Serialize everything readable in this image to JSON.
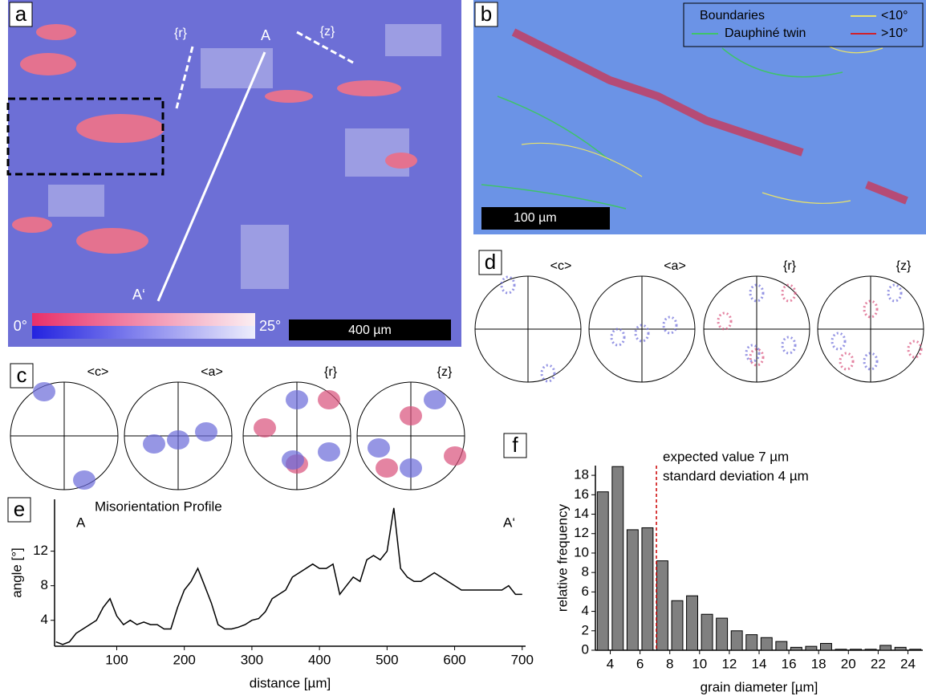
{
  "panels": {
    "a": {
      "label": "a",
      "start": "A",
      "end": "A‘",
      "r": "{r}",
      "z": "{z}",
      "scale_min": "0°",
      "scale_max": "25°",
      "scale_bar": "400 µm"
    },
    "b": {
      "label": "b",
      "legend_title": "Boundaries",
      "twin": "Dauphiné twin",
      "low": "<10°",
      "high": ">10°",
      "scale_bar": "100 µm"
    },
    "c": {
      "label": "c",
      "poles": [
        "<c>",
        "<a>",
        "{r}",
        "{z}"
      ]
    },
    "d": {
      "label": "d",
      "poles": [
        "<c>",
        "<a>",
        "{r}",
        "{z}"
      ]
    }
  },
  "chart_data": [
    {
      "type": "line",
      "panel": "e",
      "title": "Misorientation Profile",
      "annotations": [
        "A",
        "A‘"
      ],
      "x_label": "distance [µm]",
      "y_label": "angle [°]",
      "color": "#000000",
      "x": [
        10,
        20,
        30,
        40,
        50,
        60,
        70,
        80,
        90,
        100,
        110,
        120,
        130,
        140,
        150,
        160,
        170,
        180,
        190,
        200,
        210,
        220,
        230,
        240,
        250,
        260,
        270,
        280,
        290,
        300,
        310,
        320,
        330,
        340,
        350,
        360,
        370,
        380,
        390,
        400,
        410,
        420,
        430,
        440,
        450,
        460,
        470,
        480,
        490,
        500,
        510,
        520,
        530,
        540,
        550,
        560,
        570,
        580,
        590,
        600,
        610,
        620,
        630,
        640,
        650,
        660,
        670,
        680,
        690,
        700
      ],
      "values": [
        1.5,
        1.2,
        1.5,
        2.5,
        3,
        3.5,
        4,
        5.5,
        6.5,
        4.5,
        3.5,
        4,
        3.5,
        3.8,
        3.5,
        3.5,
        3,
        3,
        5.5,
        7.5,
        8.5,
        10,
        8,
        6,
        3.5,
        3,
        3,
        3.2,
        3.5,
        4,
        4.2,
        5,
        6.5,
        7,
        7.5,
        9,
        9.5,
        10,
        10.5,
        10,
        10,
        10.5,
        7,
        8,
        9,
        8.5,
        11,
        11.5,
        11,
        12,
        17,
        10,
        9,
        8.5,
        8.5,
        9,
        9.5,
        9,
        8.5,
        8,
        7.5,
        7.5,
        7.5,
        7.5,
        7.5,
        7.5,
        7.5,
        8,
        7,
        7
      ],
      "xlim": [
        8,
        705
      ],
      "ylim": [
        1,
        18
      ],
      "xticks": [
        100,
        200,
        300,
        400,
        500,
        600,
        700
      ],
      "yticks": [
        4,
        8,
        12
      ]
    },
    {
      "type": "bar",
      "panel": "f",
      "annotations": [
        "expected value 7 µm",
        "standard deviation 4 µm"
      ],
      "x_label": "grain diameter [µm]",
      "y_label": "relative frequency",
      "color": "#808080",
      "x": [
        3.5,
        4.5,
        5.5,
        6.5,
        7.5,
        8.5,
        9.5,
        10.5,
        11.5,
        12.5,
        13.5,
        14.5,
        15.5,
        16.5,
        17.5,
        18.5,
        19.5,
        20.5,
        21.5,
        22.5,
        23.5,
        24.5
      ],
      "values": [
        16.3,
        18.9,
        12.4,
        12.6,
        9.2,
        5.1,
        5.6,
        3.7,
        3.3,
        2.0,
        1.6,
        1.3,
        0.9,
        0.3,
        0.4,
        0.7,
        0.1,
        0.1,
        0.1,
        0.5,
        0.3,
        0.1
      ],
      "reference_line": {
        "x": 7.1,
        "color": "#cc0000"
      },
      "xlim": [
        3,
        25
      ],
      "ylim": [
        0,
        19
      ],
      "xticks": [
        4,
        6,
        8,
        10,
        12,
        14,
        16,
        18,
        20,
        22,
        24
      ],
      "yticks": [
        0,
        2,
        4,
        6,
        8,
        10,
        12,
        14,
        16,
        18
      ]
    }
  ]
}
